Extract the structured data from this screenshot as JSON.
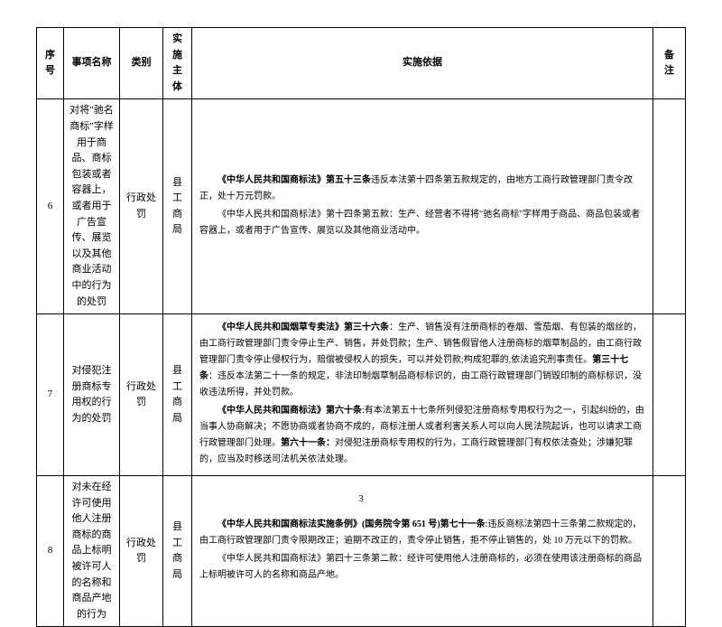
{
  "headers": {
    "seq": "序号",
    "name": "事项名称",
    "type": "类别",
    "entity": "实施主体",
    "basis": "实施依据",
    "note": "备 注"
  },
  "rows": [
    {
      "seq": "6",
      "name": "对将\"驰名商标\"字样用于商品、商标包装或者容器上，或者用于广告宣传、展览以及其他商业活动中的行为的处罚",
      "type": "行政处罚",
      "entity": "县工商局",
      "basis_parts": {
        "b1": "《中华人民共和国商标法》第五十三条",
        "t1": "违反本法第十四条第五款规定的，由地方工商行政管理部门责令改正，处十万元罚款。",
        "t2": "《中华人民共和国商标法》第十四条第五款：生产、经营者不得将\"驰名商标\"字样用于商品、商品包装或者容器上，或者用于广告宣传、展览以及其他商业活动中。"
      }
    },
    {
      "seq": "7",
      "name": "对侵犯注册商标专用权的行为的处罚",
      "type": "行政处罚",
      "entity": "县工商局",
      "basis_parts": {
        "b1": "《中华人民共和国烟草专卖法》第三十六条",
        "t1": "：生产、销售没有注册商标的卷烟、雪茄烟、有包装的烟丝的，由工商行政管理部门责令停止生产、销售，并处罚款；生产、销售假冒他人注册商标的烟草制品的，由工商行政管理部门责令停止侵权行为，赔偿被侵权人的损失，可以并处罚款;构成犯罪的,依法追究刑事责任。",
        "b2": "第三十七条",
        "t2": "：违反本法第二十一条的规定，非法印制烟草制品商标标识的，由工商行政管理部门销毁印制的商标标识，没收违法所得，并处罚款。",
        "b3": "《中华人民共和国商标法》第六十条",
        "t3": ":有本法第五十七条所列侵犯注册商标专用权行为之一，引起纠纷的，由当事人协商解决；不愿协商或者协商不成的，商标注册人或者利害关系人可以向人民法院起诉，也可以请求工商行政管理部门处理。",
        "b4": "第六十一条：",
        "t4": "对侵犯注册商标专用权的行为，工商行政管理部门有权依法查处；涉嫌犯罪的，应当及时移送司法机关依法处理。"
      }
    },
    {
      "seq": "8",
      "name": "对未在经许可使用他人注册商标的商品上标明被许可人的名称和商品产地的行为",
      "type": "行政处罚",
      "entity": "县工商局",
      "basis_parts": {
        "b1": "《中华人民共和国商标法实施条例》(国务院令第 651 号)第七十一条",
        "t1": ":违反商标法第四十三条第二款规定的，由工商行政管理部门责令限期改正；逾期不改正的，责令停止销售，拒不停止销售的，处 10 万元以下的罚款。",
        "t2": "《中华人民共和国商标法》第四十三条第二款：经许可使用他人注册商标的，必须在使用该注册商标的商品上标明被许可人的名称和商品产地。"
      }
    }
  ],
  "page_number": "3"
}
